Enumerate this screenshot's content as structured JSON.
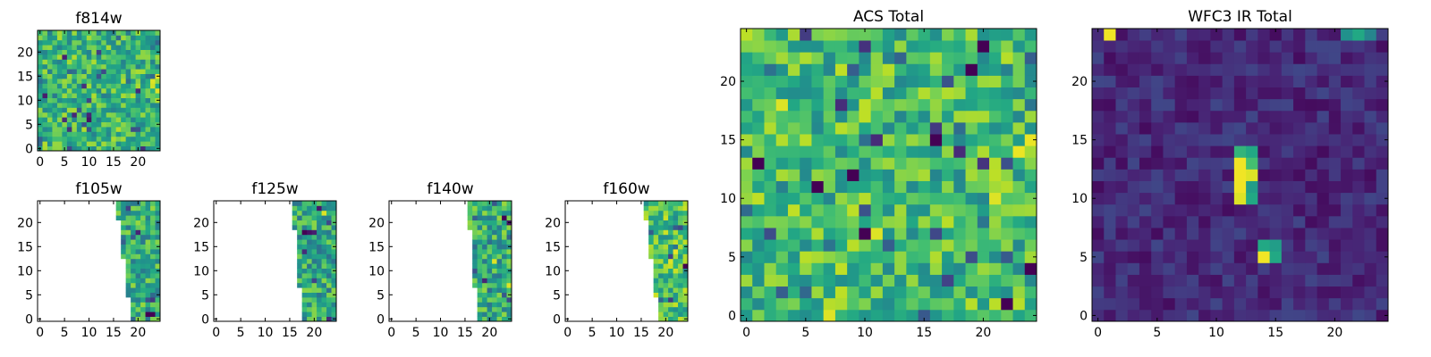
{
  "figure": {
    "colormap": "viridis",
    "colors": {
      "frame": "#000000",
      "background": "#ffffff"
    }
  },
  "chart_data": [
    {
      "type": "heatmap",
      "title": "f814w",
      "grid": [
        25,
        25
      ],
      "xlim": [
        -0.5,
        24.5
      ],
      "ylim": [
        -0.5,
        24.5
      ],
      "xticks": [
        0,
        5,
        10,
        15,
        20
      ],
      "yticks": [
        0,
        5,
        10,
        15,
        20
      ],
      "coverage": "full",
      "value_range": [
        0,
        1
      ],
      "typical_level": 0.66,
      "note_highlights": [
        {
          "x": 23,
          "y": 14,
          "value": 0.95
        },
        {
          "x": 24,
          "y": 15,
          "value": 0.97
        },
        {
          "x": 23,
          "y": 13,
          "value": 0.93
        },
        {
          "x": 24,
          "y": 12,
          "value": 0.95
        },
        {
          "x": 10,
          "y": 6,
          "value": 0.05
        },
        {
          "x": 1,
          "y": 11,
          "value": 0.08
        }
      ]
    },
    {
      "type": "heatmap",
      "title": "f105w",
      "grid": [
        25,
        25
      ],
      "xlim": [
        -0.5,
        24.5
      ],
      "ylim": [
        -0.5,
        24.5
      ],
      "xticks": [
        0,
        5,
        10,
        15,
        20
      ],
      "yticks": [
        0,
        5,
        10,
        15,
        20
      ],
      "coverage": "right wedge",
      "value_range": [
        0,
        1
      ],
      "typical_level": 0.62,
      "note_highlights": [
        {
          "x": 22,
          "y": 1,
          "value": 0.0
        },
        {
          "x": 23,
          "y": 1,
          "value": 0.0
        },
        {
          "x": 20,
          "y": 18,
          "value": 0.1
        }
      ]
    },
    {
      "type": "heatmap",
      "title": "f125w",
      "grid": [
        25,
        25
      ],
      "xlim": [
        -0.5,
        24.5
      ],
      "ylim": [
        -0.5,
        24.5
      ],
      "xticks": [
        0,
        5,
        10,
        15,
        20
      ],
      "yticks": [
        0,
        5,
        10,
        15,
        20
      ],
      "coverage": "right wedge",
      "value_range": [
        0,
        1
      ],
      "typical_level": 0.6,
      "note_highlights": [
        {
          "x": 18,
          "y": 18,
          "value": 0.0
        },
        {
          "x": 19,
          "y": 18,
          "value": 0.05
        },
        {
          "x": 22,
          "y": 22,
          "value": 0.95
        },
        {
          "x": 20,
          "y": 8,
          "value": 0.2
        }
      ]
    },
    {
      "type": "heatmap",
      "title": "f140w",
      "grid": [
        25,
        25
      ],
      "xlim": [
        -0.5,
        24.5
      ],
      "ylim": [
        -0.5,
        24.5
      ],
      "xticks": [
        0,
        5,
        10,
        15,
        20
      ],
      "yticks": [
        0,
        5,
        10,
        15,
        20
      ],
      "coverage": "right wedge",
      "value_range": [
        0,
        1
      ],
      "typical_level": 0.62,
      "note_highlights": [
        {
          "x": 23,
          "y": 21,
          "value": 0.0
        },
        {
          "x": 24,
          "y": 20,
          "value": 0.05
        },
        {
          "x": 21,
          "y": 12,
          "value": 0.95
        },
        {
          "x": 24,
          "y": 7,
          "value": 0.95
        }
      ]
    },
    {
      "type": "heatmap",
      "title": "f160w",
      "grid": [
        25,
        25
      ],
      "xlim": [
        -0.5,
        24.5
      ],
      "ylim": [
        -0.5,
        24.5
      ],
      "xticks": [
        0,
        5,
        10,
        15,
        20
      ],
      "yticks": [
        0,
        5,
        10,
        15,
        20
      ],
      "coverage": "right wedge",
      "value_range": [
        0,
        1
      ],
      "typical_level": 0.7,
      "note_highlights": [
        {
          "x": 24,
          "y": 11,
          "value": 0.0
        },
        {
          "x": 21,
          "y": 12,
          "value": 0.95
        },
        {
          "x": 22,
          "y": 14,
          "value": 0.97
        },
        {
          "x": 24,
          "y": 16,
          "value": 0.9
        }
      ]
    },
    {
      "type": "heatmap",
      "title": "ACS Total",
      "grid": [
        25,
        25
      ],
      "xlim": [
        -0.5,
        24.5
      ],
      "ylim": [
        -0.5,
        24.5
      ],
      "xticks": [
        0,
        5,
        10,
        15,
        20
      ],
      "yticks": [
        0,
        5,
        10,
        15,
        20
      ],
      "coverage": "full",
      "value_range": [
        0,
        1
      ],
      "typical_level": 0.68,
      "note_highlights": [
        {
          "x": 20,
          "y": 23,
          "value": 0.0
        },
        {
          "x": 19,
          "y": 21,
          "value": 0.0
        },
        {
          "x": 1,
          "y": 13,
          "value": 0.0
        },
        {
          "x": 6,
          "y": 11,
          "value": 0.0
        },
        {
          "x": 9,
          "y": 12,
          "value": 0.0
        },
        {
          "x": 16,
          "y": 15,
          "value": 0.0
        },
        {
          "x": 10,
          "y": 7,
          "value": 0.0
        },
        {
          "x": 24,
          "y": 4,
          "value": 0.0
        },
        {
          "x": 22,
          "y": 1,
          "value": 0.0
        },
        {
          "x": 11,
          "y": 7,
          "value": 0.95
        },
        {
          "x": 3,
          "y": 18,
          "value": 0.95
        },
        {
          "x": 7,
          "y": 0,
          "value": 0.95
        },
        {
          "x": 23,
          "y": 14,
          "value": 0.97
        },
        {
          "x": 24,
          "y": 15,
          "value": 0.97
        },
        {
          "x": 21,
          "y": 10,
          "value": 0.95
        }
      ]
    },
    {
      "type": "heatmap",
      "title": "WFC3 IR Total",
      "grid": [
        25,
        25
      ],
      "xlim": [
        -0.5,
        24.5
      ],
      "ylim": [
        -0.5,
        24.5
      ],
      "xticks": [
        0,
        5,
        10,
        15,
        20
      ],
      "yticks": [
        0,
        5,
        10,
        15,
        20
      ],
      "coverage": "full",
      "value_range": [
        0,
        1
      ],
      "typical_level": 0.12,
      "note_highlights": [
        {
          "x": 12,
          "y": 14,
          "value": 0.65
        },
        {
          "x": 13,
          "y": 14,
          "value": 0.6
        },
        {
          "x": 12,
          "y": 13,
          "value": 0.98
        },
        {
          "x": 13,
          "y": 13,
          "value": 0.7
        },
        {
          "x": 12,
          "y": 12,
          "value": 0.98
        },
        {
          "x": 13,
          "y": 12,
          "value": 0.95
        },
        {
          "x": 12,
          "y": 11,
          "value": 0.98
        },
        {
          "x": 13,
          "y": 11,
          "value": 0.55
        },
        {
          "x": 12,
          "y": 10,
          "value": 0.95
        },
        {
          "x": 13,
          "y": 10,
          "value": 0.6
        },
        {
          "x": 14,
          "y": 6,
          "value": 0.6
        },
        {
          "x": 15,
          "y": 6,
          "value": 0.55
        },
        {
          "x": 14,
          "y": 5,
          "value": 0.98
        },
        {
          "x": 15,
          "y": 5,
          "value": 0.6
        },
        {
          "x": 1,
          "y": 24,
          "value": 0.98
        },
        {
          "x": 22,
          "y": 24,
          "value": 0.6
        },
        {
          "x": 21,
          "y": 24,
          "value": 0.5
        },
        {
          "x": 23,
          "y": 24,
          "value": 0.45
        }
      ]
    }
  ]
}
